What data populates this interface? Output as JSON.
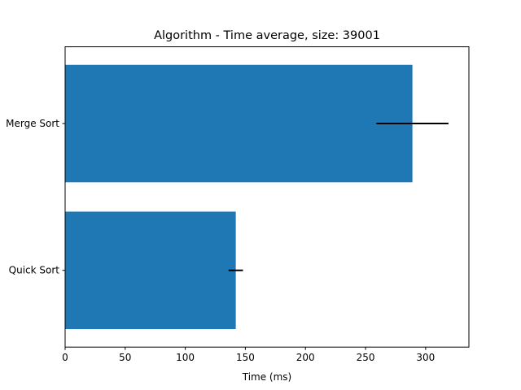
{
  "chart_data": {
    "type": "bar",
    "orientation": "horizontal",
    "title": "Algorithm - Time average, size: 39001",
    "xlabel": "Time (ms)",
    "ylabel": "",
    "categories": [
      "Quick Sort",
      "Merge Sort"
    ],
    "values": [
      142,
      289
    ],
    "errors": [
      6,
      30
    ],
    "xlim": [
      0,
      336
    ],
    "xticks": [
      0,
      50,
      100,
      150,
      200,
      250,
      300
    ],
    "grid": false,
    "colors": {
      "bar": "#1f77b4",
      "error_bar": "#000000",
      "axis": "#000000"
    }
  }
}
